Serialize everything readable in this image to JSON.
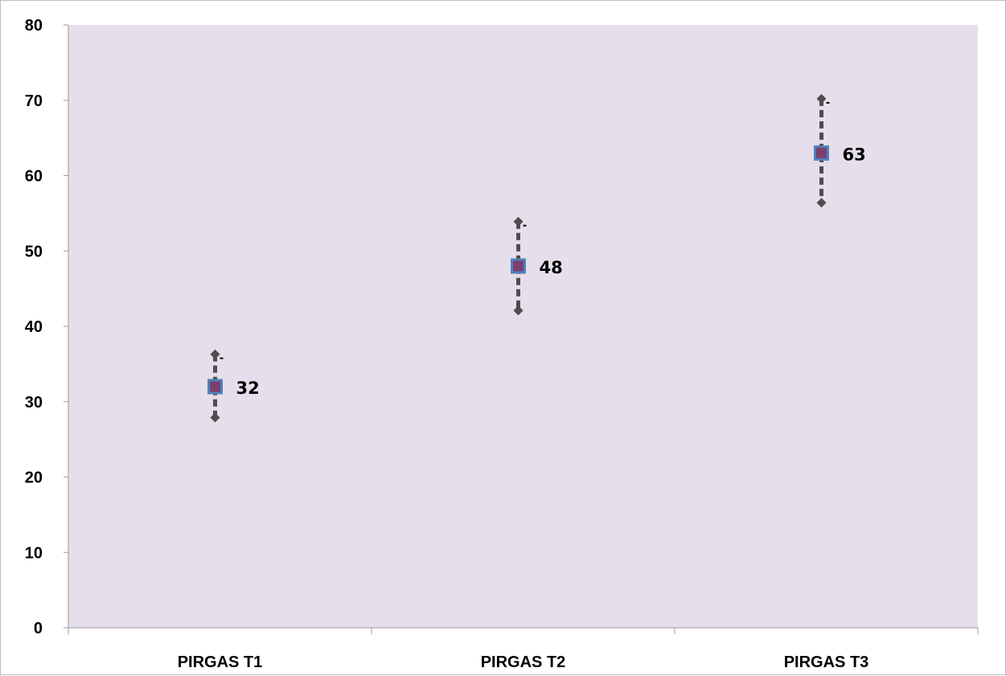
{
  "chart_data": {
    "type": "scatter",
    "categories": [
      "PIRGAS T1",
      "PIRGAS T2",
      "PIRGAS T3"
    ],
    "series": [
      {
        "values": [
          32,
          48,
          63
        ],
        "error_high": [
          36.3,
          53.9,
          70.2
        ],
        "error_low": [
          27.9,
          42.1,
          56.4
        ],
        "data_labels": [
          "32",
          "48",
          "63"
        ]
      }
    ],
    "ylim": [
      0,
      80
    ],
    "yticks": [
      0,
      10,
      20,
      30,
      40,
      50,
      60,
      70,
      80
    ],
    "ytick_labels": [
      "0",
      "10",
      "20",
      "30",
      "40",
      "50",
      "60",
      "70",
      "80"
    ],
    "grid": false,
    "legend": "none",
    "colors": {
      "plot_background": "#e6dfeb",
      "marker_fill": "#7b3f6e",
      "marker_edge": "#4f81bd",
      "error_bar": "#4d4d4d",
      "axis": "#9a9a9a"
    }
  }
}
